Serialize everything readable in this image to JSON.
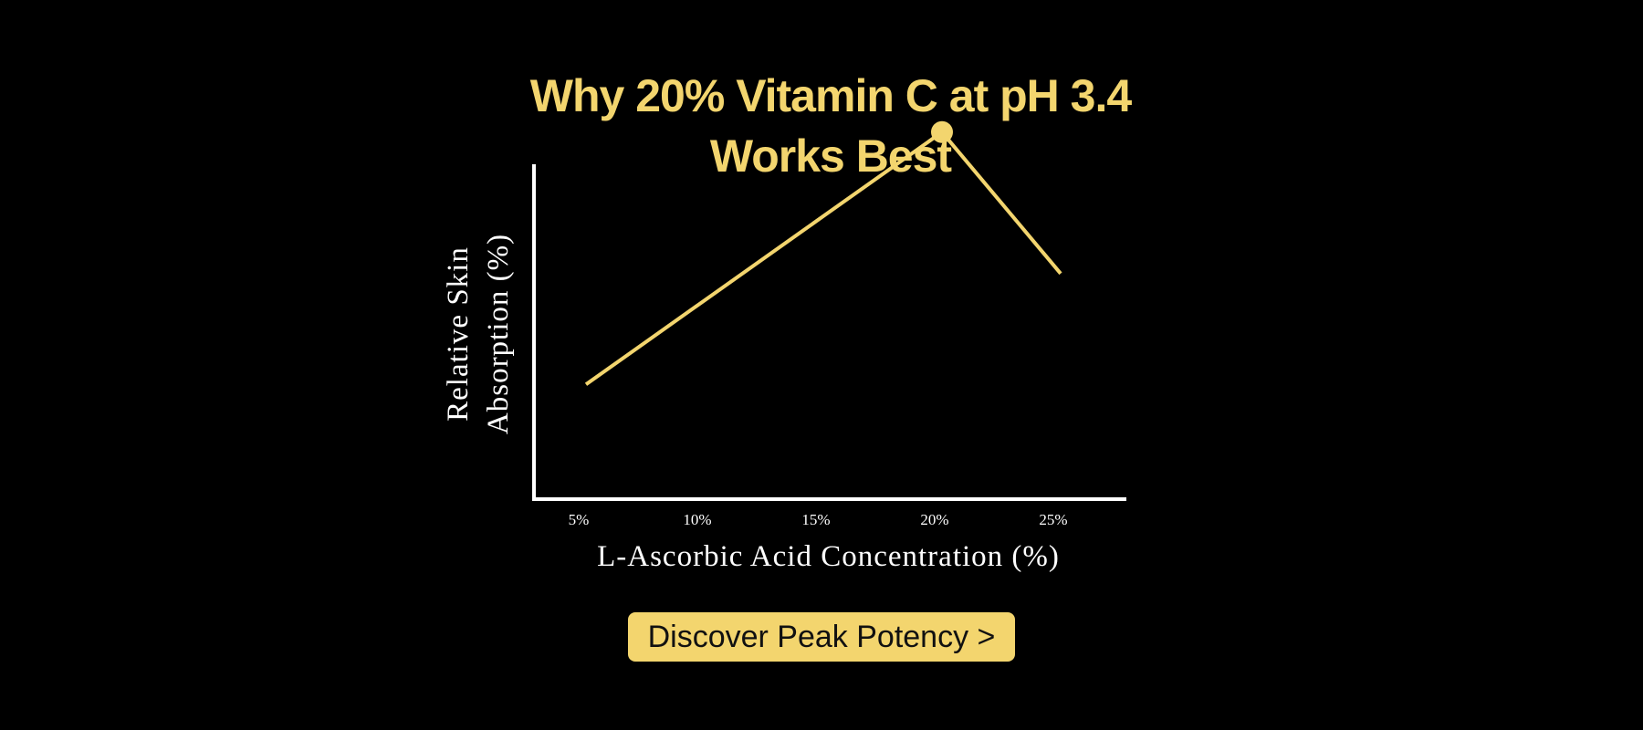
{
  "chart_data": {
    "type": "line",
    "title_lines": [
      "Why 20% Vitamin C at pH 3.4",
      "Works Best"
    ],
    "xlabel": "L-Ascorbic Acid Concentration (%)",
    "ylabel_lines": [
      "Relative Skin",
      "Absorption (%)"
    ],
    "categories": [
      "5%",
      "10%",
      "15%",
      "20%",
      "25%"
    ],
    "series": [
      {
        "values": [
          30,
          52,
          74,
          96,
          59
        ]
      }
    ],
    "ylim": [
      0,
      100
    ],
    "highlight_index": 3,
    "grid": false,
    "colors": {
      "line": "#f3d56e",
      "axis": "#ffffff",
      "text": "#ffffff",
      "background": "#000000"
    }
  },
  "cta": {
    "label": "Discover Peak Potency >"
  }
}
